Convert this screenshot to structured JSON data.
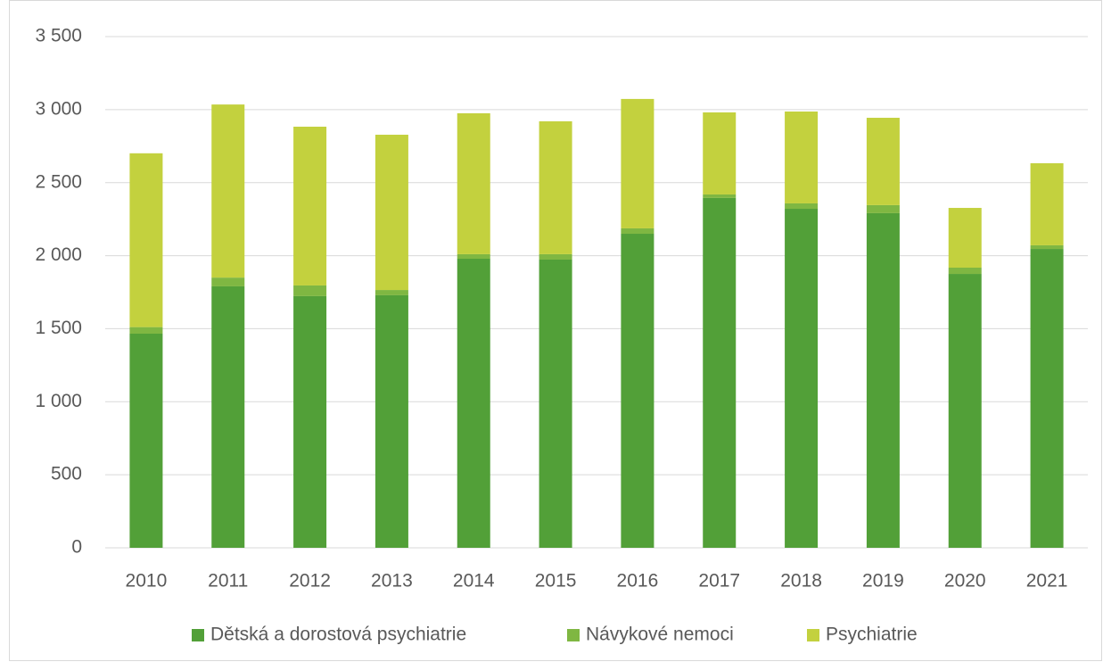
{
  "chart_data": {
    "type": "stacked_bar",
    "categories": [
      "2010",
      "2011",
      "2012",
      "2013",
      "2014",
      "2015",
      "2016",
      "2017",
      "2018",
      "2019",
      "2020",
      "2021"
    ],
    "series": [
      {
        "name": "Dětská a dorostová psychiatrie",
        "color": "#52a038",
        "values": [
          1466,
          1790,
          1723,
          1729,
          1979,
          1973,
          2150,
          2395,
          2321,
          2291,
          1875,
          2046
        ]
      },
      {
        "name": "Návykové nemoci",
        "color": "#7fb742",
        "values": [
          45,
          60,
          73,
          36,
          31,
          37,
          37,
          24,
          37,
          55,
          43,
          25
        ]
      },
      {
        "name": "Psychiatrie",
        "color": "#c3d13e",
        "values": [
          1190,
          1185,
          1087,
          1063,
          965,
          910,
          886,
          562,
          629,
          598,
          409,
          562
        ]
      }
    ],
    "ylim": [
      0,
      3500
    ],
    "yticks": [
      0,
      500,
      {
        "value": 1000,
        "label": "1 000"
      },
      {
        "value": 1500,
        "label": "1 500"
      },
      {
        "value": 2000,
        "label": "2 000"
      },
      {
        "value": 2500,
        "label": "2 500"
      },
      {
        "value": 3000,
        "label": "3 000"
      },
      {
        "value": 3500,
        "label": "3 500"
      }
    ],
    "grid": true,
    "legend": "bottom"
  }
}
